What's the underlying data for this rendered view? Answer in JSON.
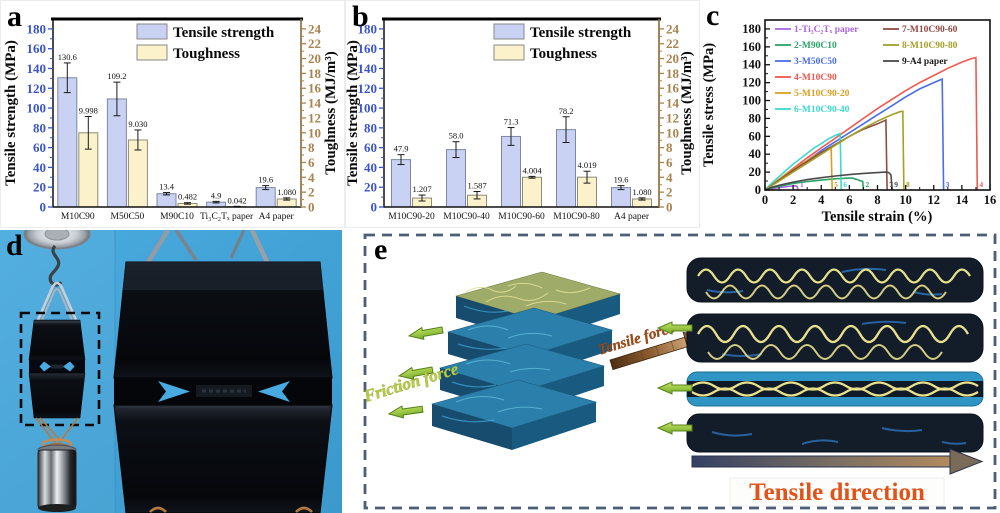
{
  "figure": {
    "panel_letters": {
      "a": "a",
      "b": "b",
      "c": "c",
      "d": "d",
      "e": "e"
    }
  },
  "panel_e": {
    "friction_force": "Friction force",
    "tensile_force": "Tensile force",
    "tensile_direction": "Tensile direction"
  },
  "colors": {
    "bar_strength_fill": "#c9d2f3",
    "bar_toughness_fill": "#fbf2cb",
    "left_axis_text": "#3b55c8",
    "right_axis_text": "#a8834e",
    "photo_background": "#42a2d5",
    "green_arrow": "#8fc640",
    "tensile_direction_text": "#e0541a",
    "friction_text": "#b6cc45",
    "dashed_border": "#4d5e78"
  },
  "chart_data": [
    {
      "id": "chart-a",
      "panel": "a",
      "type": "bar",
      "categories": [
        "M10C90",
        "M50C50",
        "M90C10",
        "Ti₃C₂Tₓ paper",
        "A4 paper"
      ],
      "series": [
        {
          "name": "Tensile strength",
          "axis": "left",
          "color": "#c9d2f3",
          "edge": "#7e88a6",
          "values": [
            130.6,
            109.2,
            13.4,
            4.9,
            19.6
          ],
          "errors": [
            15,
            17,
            1.2,
            0.8,
            2
          ],
          "labels": [
            "130.6",
            "109.2",
            "13.4",
            "4.9",
            "19.6"
          ]
        },
        {
          "name": "Toughness",
          "axis": "right",
          "color": "#fbf2cb",
          "edge": "#8d8d75",
          "values": [
            9.998,
            9.03,
            0.482,
            0.042,
            1.08
          ],
          "errors": [
            2.2,
            1.35,
            0.1,
            0.05,
            0.15
          ],
          "labels": [
            "9.998",
            "9.030",
            "0.482",
            "0.042",
            "1.080"
          ]
        }
      ],
      "ylabel_left": "Tensile strength (MPa)",
      "ylabel_right": "Toughness (MJ/m³)",
      "yaxis_left": {
        "min": 0,
        "max": 190,
        "tick_step": 20,
        "tick_top": 180
      },
      "yaxis_right": {
        "min": 0,
        "max": 25.33,
        "tick_step": 2,
        "tick_top": 24
      },
      "legend_position": "top-center"
    },
    {
      "id": "chart-b",
      "panel": "b",
      "type": "bar",
      "categories": [
        "M10C90-20",
        "M10C90-40",
        "M10C90-60",
        "M10C90-80",
        "A4 paper"
      ],
      "series": [
        {
          "name": "Tensile strength",
          "axis": "left",
          "color": "#c9d2f3",
          "edge": "#7e88a6",
          "values": [
            47.9,
            58.0,
            71.3,
            78.2,
            19.6
          ],
          "errors": [
            5,
            8,
            9,
            13,
            2
          ],
          "labels": [
            "47.9",
            "58.0",
            "71.3",
            "78.2",
            "19.6"
          ]
        },
        {
          "name": "Toughness",
          "axis": "right",
          "color": "#fbf2cb",
          "edge": "#8d8d75",
          "values": [
            1.207,
            1.587,
            4.004,
            4.019,
            1.08
          ],
          "errors": [
            0.4,
            0.5,
            0.12,
            0.8,
            0.15
          ],
          "labels": [
            "1.207",
            "1.587",
            "4.004",
            "4.019",
            "1.080"
          ]
        }
      ],
      "ylabel_left": "Tensile strength (MPa)",
      "ylabel_right": "Toughness (MJ/m³)",
      "yaxis_left": {
        "min": 0,
        "max": 190,
        "tick_step": 20,
        "tick_top": 180
      },
      "yaxis_right": {
        "min": 0,
        "max": 25.33,
        "tick_step": 2,
        "tick_top": 24
      },
      "legend_position": "top-center"
    },
    {
      "id": "chart-c",
      "panel": "c",
      "type": "line",
      "xlabel": "Tensile strain (%)",
      "ylabel": "Tensile stress (MPa)",
      "xaxis": {
        "min": 0,
        "max": 16,
        "tick_step": 2
      },
      "yaxis": {
        "min": 0,
        "max": 190,
        "tick_step": 20,
        "tick_top": 180
      },
      "legend_position": "top-left-two-columns",
      "series": [
        {
          "name": "1-Ti₃C₂Tₓ paper",
          "color": "#a964e3",
          "end_label": "1",
          "points": [
            [
              0,
              0
            ],
            [
              0.4,
              1.2
            ],
            [
              0.8,
              2.2
            ],
            [
              1.2,
              3.1
            ],
            [
              1.6,
              3.9
            ],
            [
              2.0,
              4.5
            ],
            [
              2.2,
              4.7
            ],
            [
              2.3,
              3.5
            ],
            [
              2.35,
              0
            ]
          ]
        },
        {
          "name": "2-M90C10",
          "color": "#2aa36a",
          "end_label": "2",
          "points": [
            [
              0,
              0
            ],
            [
              0.5,
              2.2
            ],
            [
              1,
              4.2
            ],
            [
              1.5,
              5.8
            ],
            [
              2,
              7.2
            ],
            [
              2.5,
              8.4
            ],
            [
              3,
              9.4
            ],
            [
              3.5,
              10.3
            ],
            [
              4,
              11.1
            ],
            [
              4.5,
              11.9
            ],
            [
              5,
              12.5
            ],
            [
              5.5,
              13.0
            ],
            [
              6,
              13.3
            ],
            [
              6.2,
              13.4
            ],
            [
              6.5,
              12.0
            ],
            [
              6.8,
              10.2
            ],
            [
              6.95,
              9.6
            ],
            [
              7.0,
              0
            ]
          ]
        },
        {
          "name": "3-M50C50",
          "color": "#4a6de8",
          "end_label": "3",
          "points": [
            [
              0,
              0
            ],
            [
              1,
              11
            ],
            [
              2,
              22
            ],
            [
              3,
              33
            ],
            [
              4,
              44
            ],
            [
              5,
              54
            ],
            [
              6,
              64
            ],
            [
              7,
              74
            ],
            [
              8,
              84
            ],
            [
              9,
              94
            ],
            [
              10,
              104
            ],
            [
              11,
              113
            ],
            [
              12,
              120
            ],
            [
              12.6,
              124
            ],
            [
              12.7,
              0
            ]
          ]
        },
        {
          "name": "4-M10C90",
          "color": "#f25850",
          "end_label": "4",
          "points": [
            [
              0,
              0
            ],
            [
              1,
              12
            ],
            [
              2,
              24
            ],
            [
              3,
              36
            ],
            [
              4,
              47
            ],
            [
              5,
              58
            ],
            [
              6,
              69
            ],
            [
              7,
              80
            ],
            [
              8,
              91
            ],
            [
              9,
              101
            ],
            [
              10,
              111
            ],
            [
              11,
              120
            ],
            [
              12,
              128
            ],
            [
              13,
              136
            ],
            [
              14,
              143
            ],
            [
              14.7,
              147
            ],
            [
              15,
              148
            ],
            [
              15.1,
              0
            ]
          ]
        },
        {
          "name": "5-M10C90-20",
          "color": "#d7a021",
          "end_label": "5",
          "points": [
            [
              0,
              0
            ],
            [
              0.5,
              6
            ],
            [
              1,
              12
            ],
            [
              1.5,
              18
            ],
            [
              2,
              23
            ],
            [
              2.5,
              28
            ],
            [
              3,
              33
            ],
            [
              3.5,
              38
            ],
            [
              4,
              42
            ],
            [
              4.5,
              46
            ],
            [
              4.7,
              47.9
            ],
            [
              4.78,
              0
            ]
          ]
        },
        {
          "name": "6-M10C90-40",
          "color": "#3bd9cf",
          "end_label": "6",
          "points": [
            [
              0,
              0
            ],
            [
              0.5,
              8
            ],
            [
              1,
              15
            ],
            [
              1.5,
              22
            ],
            [
              2,
              29
            ],
            [
              2.5,
              35
            ],
            [
              3,
              41
            ],
            [
              3.5,
              47
            ],
            [
              4,
              52
            ],
            [
              4.5,
              57
            ],
            [
              5,
              61
            ],
            [
              5.35,
              63
            ],
            [
              5.42,
              0
            ]
          ]
        },
        {
          "name": "7-M10C90-60",
          "color": "#8f4b42",
          "end_label": "7",
          "points": [
            [
              0,
              0
            ],
            [
              1,
              11
            ],
            [
              2,
              22
            ],
            [
              3,
              32
            ],
            [
              4,
              42
            ],
            [
              5,
              51
            ],
            [
              6,
              60
            ],
            [
              7,
              68
            ],
            [
              8,
              74
            ],
            [
              8.5,
              77.5
            ],
            [
              8.6,
              78.2
            ],
            [
              8.68,
              0
            ]
          ]
        },
        {
          "name": "8-M10C90-80",
          "color": "#a49f27",
          "end_label": "8",
          "points": [
            [
              0,
              0
            ],
            [
              1,
              10
            ],
            [
              2,
              20
            ],
            [
              3,
              30
            ],
            [
              4,
              40
            ],
            [
              5,
              50
            ],
            [
              6,
              60
            ],
            [
              7,
              69
            ],
            [
              8,
              77
            ],
            [
              9,
              84
            ],
            [
              9.6,
              87.5
            ],
            [
              9.8,
              88
            ],
            [
              9.88,
              0
            ]
          ]
        },
        {
          "name": "9-A4 paper",
          "color": "#4a4a4a",
          "legend_text_color": "#1a1a1a",
          "end_label": "9",
          "points": [
            [
              0,
              0
            ],
            [
              0.5,
              3
            ],
            [
              1,
              5.2
            ],
            [
              2,
              8.8
            ],
            [
              3,
              11.6
            ],
            [
              4,
              13.8
            ],
            [
              5,
              15.7
            ],
            [
              6,
              17.2
            ],
            [
              7,
              18.5
            ],
            [
              8,
              19.5
            ],
            [
              8.6,
              20
            ],
            [
              8.8,
              19.5
            ],
            [
              8.95,
              17
            ],
            [
              9.05,
              0
            ]
          ]
        }
      ]
    }
  ]
}
